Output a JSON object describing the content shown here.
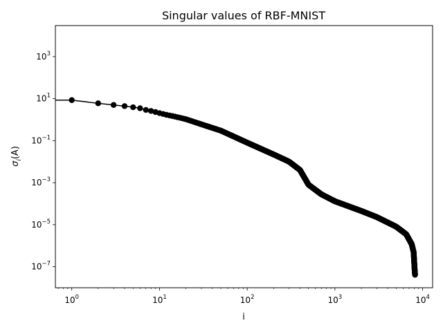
{
  "chart_data": {
    "type": "scatter",
    "title": "Singular values of RBF-MNIST",
    "xlabel": "i",
    "ylabel": "σ_i(A)",
    "ylabel_main": "σ",
    "ylabel_sub": "i",
    "ylabel_tail": "(A)",
    "xscale": "log",
    "yscale": "log",
    "xlim": [
      0.65,
      13000
    ],
    "ylim": [
      1e-08,
      30000
    ],
    "grid": false,
    "line_color": "#000000",
    "marker_color": "#000000",
    "x_ticks": [
      {
        "value": 1,
        "base": "10",
        "exp": "0"
      },
      {
        "value": 10,
        "base": "10",
        "exp": "1"
      },
      {
        "value": 100,
        "base": "10",
        "exp": "2"
      },
      {
        "value": 1000,
        "base": "10",
        "exp": "3"
      },
      {
        "value": 10000,
        "base": "10",
        "exp": "4"
      }
    ],
    "y_ticks": [
      {
        "value": 1e-07,
        "base": "10",
        "exp": "−7"
      },
      {
        "value": 1e-05,
        "base": "10",
        "exp": "−5"
      },
      {
        "value": 0.001,
        "base": "10",
        "exp": "−3"
      },
      {
        "value": 0.1,
        "base": "10",
        "exp": "−1"
      },
      {
        "value": 10,
        "base": "10",
        "exp": "1"
      },
      {
        "value": 1000,
        "base": "10",
        "exp": "3"
      }
    ],
    "series": [
      {
        "n_points": 8200,
        "line_extends_left_to": 0.65,
        "profile": [
          [
            1,
            8.5
          ],
          [
            2,
            6.0
          ],
          [
            3,
            5.0
          ],
          [
            4,
            4.4
          ],
          [
            5,
            3.9
          ],
          [
            6,
            3.5
          ],
          [
            7,
            2.9
          ],
          [
            8,
            2.6
          ],
          [
            9,
            2.3
          ],
          [
            10,
            2.05
          ],
          [
            12,
            1.7
          ],
          [
            15,
            1.4
          ],
          [
            20,
            1.05
          ],
          [
            30,
            0.6
          ],
          [
            50,
            0.3
          ],
          [
            100,
            0.08
          ],
          [
            200,
            0.022
          ],
          [
            300,
            0.01
          ],
          [
            400,
            0.004
          ],
          [
            500,
            0.0008
          ],
          [
            700,
            0.00028
          ],
          [
            1000,
            0.00013
          ],
          [
            2000,
            4.5e-05
          ],
          [
            3000,
            2.3e-05
          ],
          [
            5000,
            8e-06
          ],
          [
            6500,
            3.5e-06
          ],
          [
            7500,
            1.2e-06
          ],
          [
            7900,
            5e-07
          ],
          [
            8100,
            8e-08
          ],
          [
            8200,
            4e-08
          ]
        ]
      }
    ]
  }
}
